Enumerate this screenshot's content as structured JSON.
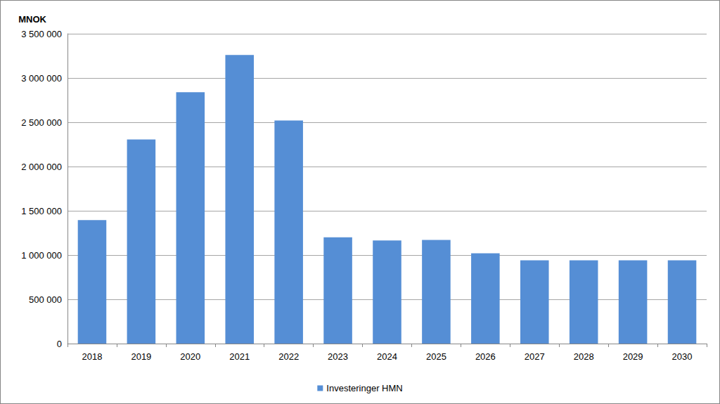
{
  "chart_data": {
    "type": "bar",
    "y_label": "MNOK",
    "categories": [
      "2018",
      "2019",
      "2020",
      "2021",
      "2022",
      "2023",
      "2024",
      "2025",
      "2026",
      "2027",
      "2028",
      "2029",
      "2030"
    ],
    "series": [
      {
        "name": "Investeringer HMN",
        "color": "#558ed5",
        "values": [
          1395000,
          2305000,
          2840000,
          3260000,
          2520000,
          1200000,
          1165000,
          1170000,
          1020000,
          940000,
          940000,
          940000,
          940000
        ]
      }
    ],
    "ylim": [
      0,
      3500000
    ],
    "yticks": [
      0,
      {
        "value": 500000,
        "label": "500 000"
      },
      {
        "value": 1000000,
        "label": "1 000 000"
      },
      {
        "value": 1500000,
        "label": "1 500 000"
      },
      {
        "value": 2000000,
        "label": "2 000 000"
      },
      {
        "value": 2500000,
        "label": "2 500 000"
      },
      {
        "value": 3000000,
        "label": "3 000 000"
      },
      {
        "value": 3500000,
        "label": "3 500 000"
      }
    ],
    "grid": true,
    "legend": "bottom"
  }
}
